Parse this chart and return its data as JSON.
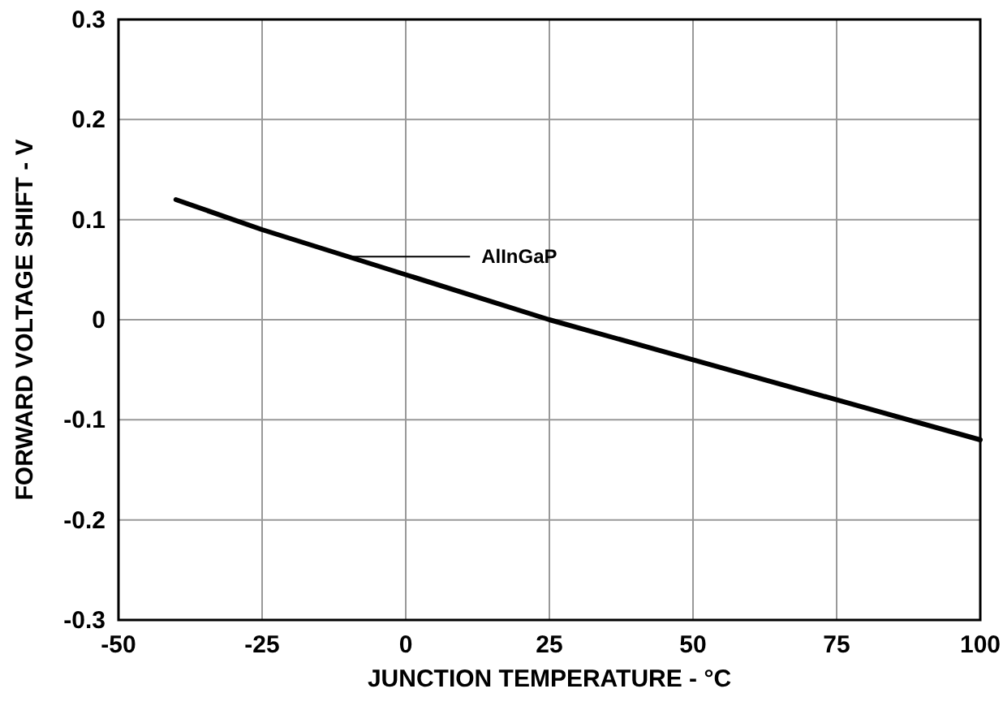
{
  "chart_data": {
    "type": "line",
    "xlabel": "JUNCTION TEMPERATURE - °C",
    "ylabel": "FORWARD VOLTAGE SHIFT - V",
    "x": [
      -40,
      -25,
      0,
      25,
      50,
      75,
      100
    ],
    "series": [
      {
        "color": "#000000",
        "values": [
          0.12,
          0.09,
          0.045,
          0,
          -0.04,
          -0.08,
          -0.12
        ]
      }
    ],
    "xlim": [
      -50,
      100
    ],
    "xticks": [
      -50,
      -25,
      0,
      25,
      50,
      75,
      100
    ],
    "ylim": [
      -0.3,
      0.3
    ],
    "yticks": [
      -0.3,
      -0.2,
      -0.1,
      0,
      0.1,
      0.2,
      0.3
    ],
    "grid": true,
    "marker": "none",
    "line_style": "solid",
    "annotations": [
      {
        "text": "AlInGaP",
        "x": -10,
        "y": 0.063
      }
    ]
  }
}
